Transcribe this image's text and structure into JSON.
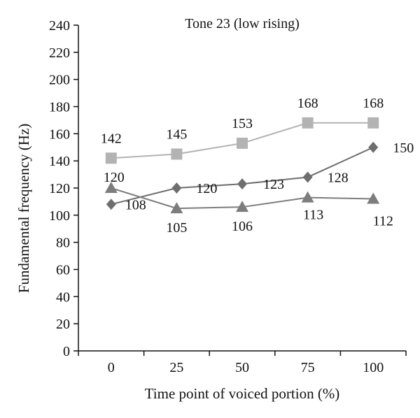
{
  "chart_data": {
    "type": "line",
    "title": "Tone 23 (low rising)",
    "xlabel": "Time point of voiced portion (%)",
    "ylabel": "Fundamental frequency (Hz)",
    "categories": [
      "0",
      "25",
      "50",
      "75",
      "100"
    ],
    "ylim": [
      0,
      240
    ],
    "yticks": [
      0,
      20,
      40,
      60,
      80,
      100,
      120,
      140,
      160,
      180,
      200,
      220,
      240
    ],
    "grid": false,
    "legend": "none",
    "series": [
      {
        "marker": "square",
        "color": "#b3b3b3",
        "values": [
          142,
          145,
          153,
          168,
          168
        ]
      },
      {
        "marker": "diamond",
        "color": "#6e6e6e",
        "values": [
          108,
          120,
          123,
          128,
          150
        ]
      },
      {
        "marker": "triangle",
        "color": "#7d7d7d",
        "values": [
          120,
          105,
          106,
          113,
          112
        ]
      }
    ]
  }
}
